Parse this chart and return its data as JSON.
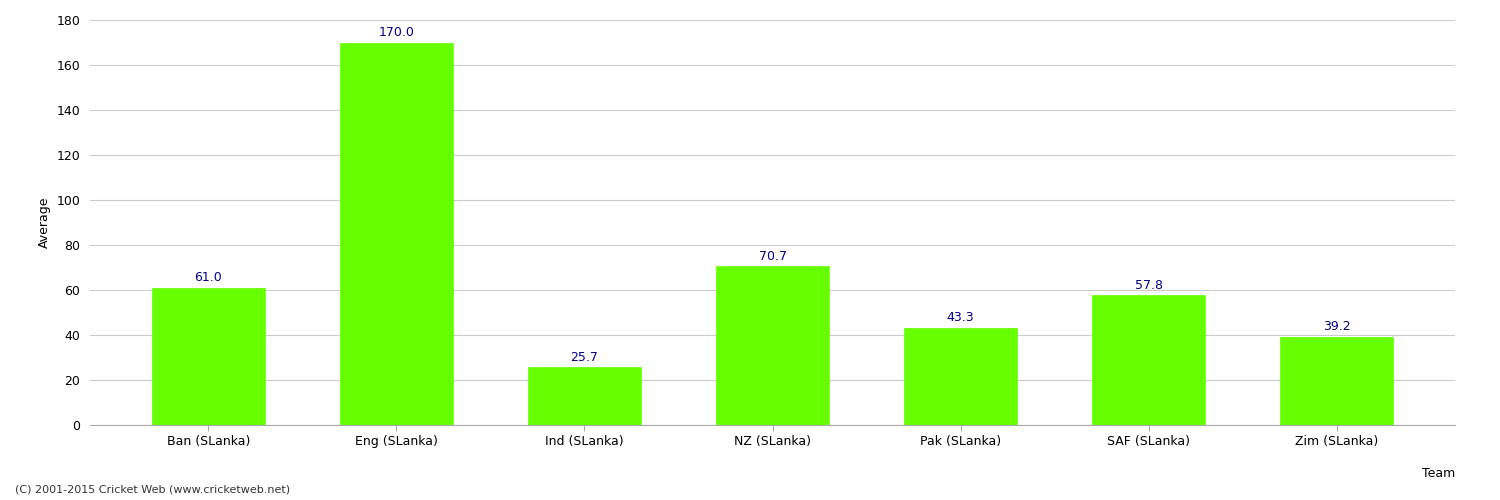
{
  "categories": [
    "Ban (SLanka)",
    "Eng (SLanka)",
    "Ind (SLanka)",
    "NZ (SLanka)",
    "Pak (SLanka)",
    "SAF (SLanka)",
    "Zim (SLanka)"
  ],
  "values": [
    61.0,
    170.0,
    25.7,
    70.7,
    43.3,
    57.8,
    39.2
  ],
  "bar_color": "#66ff00",
  "bar_edge_color": "#66ff00",
  "label_color": "#00008B",
  "ylabel": "Average",
  "xlabel": "Team",
  "ylim": [
    0,
    180
  ],
  "yticks": [
    0,
    20,
    40,
    60,
    80,
    100,
    120,
    140,
    160,
    180
  ],
  "grid_color": "#cccccc",
  "background_color": "#ffffff",
  "fig_background_color": "#ffffff",
  "footnote": "(C) 2001-2015 Cricket Web (www.cricketweb.net)",
  "label_fontsize": 9,
  "axis_fontsize": 9,
  "tick_fontsize": 9
}
